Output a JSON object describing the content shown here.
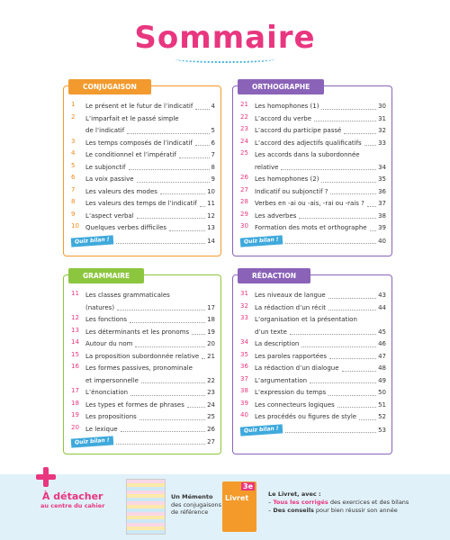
{
  "header": {
    "title": "Sommaire"
  },
  "sections": [
    {
      "title": "CONJUGAISON",
      "items": [
        {
          "num": "1",
          "label": [
            "Le présent et le futur de l’indicatif"
          ],
          "page": "4"
        },
        {
          "num": "2",
          "label": [
            "L’imparfait et le passé simple",
            "de l’indicatif"
          ],
          "page": "5"
        },
        {
          "num": "3",
          "label": [
            "Les temps composés de l’indicatif"
          ],
          "page": "6"
        },
        {
          "num": "4",
          "label": [
            "Le conditionnel et l’impératif"
          ],
          "page": "7"
        },
        {
          "num": "5",
          "label": [
            "Le subjonctif"
          ],
          "page": "8"
        },
        {
          "num": "6",
          "label": [
            "La voix passive"
          ],
          "page": "9"
        },
        {
          "num": "7",
          "label": [
            "Les valeurs des modes"
          ],
          "page": "10"
        },
        {
          "num": "8",
          "label": [
            "Les valeurs des temps de l’indicatif"
          ],
          "page": "11"
        },
        {
          "num": "9",
          "label": [
            "L’aspect verbal"
          ],
          "page": "12"
        },
        {
          "num": "10",
          "label": [
            "Quelques verbes difficiles"
          ],
          "page": "13"
        }
      ],
      "quiz": {
        "label": "Quiz bilan !",
        "page": "14"
      }
    },
    {
      "title": "ORTHOGRAPHE",
      "items": [
        {
          "num": "21",
          "label": [
            "Les homophones (1)"
          ],
          "page": "30"
        },
        {
          "num": "22",
          "label": [
            "L’accord du verbe"
          ],
          "page": "31"
        },
        {
          "num": "23",
          "label": [
            "L’accord du participe passé"
          ],
          "page": "32"
        },
        {
          "num": "24",
          "label": [
            "L’accord des adjectifs qualificatifs"
          ],
          "page": "33"
        },
        {
          "num": "25",
          "label": [
            "Les accords dans la subordonnée",
            "relative"
          ],
          "page": "34"
        },
        {
          "num": "26",
          "label": [
            "Les homophones (2)"
          ],
          "page": "35"
        },
        {
          "num": "27",
          "label": [
            "Indicatif ou subjonctif ?"
          ],
          "page": "36"
        },
        {
          "num": "28",
          "label": [
            "Verbes en -ai ou -ais, -rai ou -rais ?"
          ],
          "page": "37"
        },
        {
          "num": "29",
          "label": [
            "Les adverbes"
          ],
          "page": "38"
        },
        {
          "num": "30",
          "label": [
            "Formation des mots et orthographe"
          ],
          "page": "39"
        }
      ],
      "quiz": {
        "label": "Quiz bilan !",
        "page": "40"
      }
    },
    {
      "title": "GRAMMAIRE",
      "items": [
        {
          "num": "11",
          "label": [
            "Les classes grammaticales",
            "(natures)"
          ],
          "page": "17"
        },
        {
          "num": "12",
          "label": [
            "Les fonctions"
          ],
          "page": "18"
        },
        {
          "num": "13",
          "label": [
            "Les déterminants et les pronoms"
          ],
          "page": "19"
        },
        {
          "num": "14",
          "label": [
            "Autour du nom"
          ],
          "page": "20"
        },
        {
          "num": "15",
          "label": [
            "La proposition subordonnée relative"
          ],
          "page": "21"
        },
        {
          "num": "16",
          "label": [
            "Les formes passives, pronominale",
            "et impersonnelle"
          ],
          "page": "22"
        },
        {
          "num": "17",
          "label": [
            "L’énonciation"
          ],
          "page": "23"
        },
        {
          "num": "18",
          "label": [
            "Les types et formes de phrases"
          ],
          "page": "24"
        },
        {
          "num": "19",
          "label": [
            "Les propositions"
          ],
          "page": "25"
        },
        {
          "num": "20",
          "label": [
            "Le lexique"
          ],
          "page": "26"
        }
      ],
      "quiz": {
        "label": "Quiz bilan !",
        "page": "27"
      }
    },
    {
      "title": "RÉDACTION",
      "items": [
        {
          "num": "31",
          "label": [
            "Les niveaux de langue"
          ],
          "page": "43"
        },
        {
          "num": "32",
          "label": [
            "La rédaction d’un récit"
          ],
          "page": "44"
        },
        {
          "num": "33",
          "label": [
            "L’organisation et la présentation",
            "d’un texte"
          ],
          "page": "45"
        },
        {
          "num": "34",
          "label": [
            "La description"
          ],
          "page": "46"
        },
        {
          "num": "35",
          "label": [
            "Les paroles rapportées"
          ],
          "page": "47"
        },
        {
          "num": "36",
          "label": [
            "La rédaction d’un dialogue"
          ],
          "page": "48"
        },
        {
          "num": "37",
          "label": [
            "L’argumentation"
          ],
          "page": "49"
        },
        {
          "num": "38",
          "label": [
            "L’expression du temps"
          ],
          "page": "50"
        },
        {
          "num": "39",
          "label": [
            "Les connecteurs logiques"
          ],
          "page": "51"
        },
        {
          "num": "40",
          "label": [
            "Les procédés ou figures de style"
          ],
          "page": "52"
        }
      ],
      "quiz": {
        "label": "Quiz bilan !",
        "page": "53"
      }
    }
  ],
  "footer": {
    "detach": {
      "title": "À détacher",
      "subtitle": "au centre du cahier"
    },
    "memento": [
      "Un Mémento",
      "des conjugaisons",
      "de référence"
    ],
    "livret": {
      "cover": "Livret",
      "grade": "3e",
      "intro": "Le Livret, avec :",
      "points": [
        {
          "bold": "Tous les corrigés",
          "rest": " des exercices et des bilans"
        },
        {
          "bold": "Des conseils",
          "rest": " pour bien réussir son année"
        }
      ]
    }
  }
}
